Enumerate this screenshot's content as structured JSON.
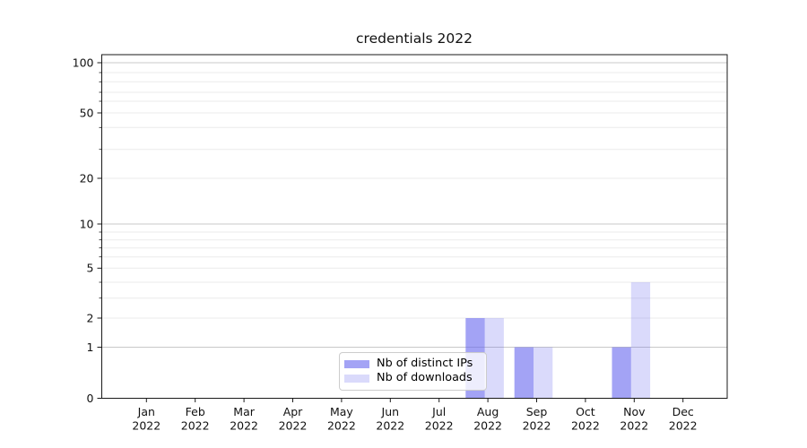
{
  "chart_data": {
    "type": "bar",
    "title": "credentials 2022",
    "x_axis": {
      "months": [
        "Jan",
        "Feb",
        "Mar",
        "Apr",
        "May",
        "Jun",
        "Jul",
        "Aug",
        "Sep",
        "Oct",
        "Nov",
        "Dec"
      ],
      "year": "2022"
    },
    "y_axis": {
      "scale": "log (0 baseline, labeled ticks 0,1,2,5,10,20,50,100)",
      "tick_labels": [
        0,
        1,
        2,
        5,
        10,
        20,
        50,
        100
      ],
      "major_gridlines": [
        1,
        10,
        100
      ],
      "minor_gridlines": [
        2,
        3,
        4,
        5,
        6,
        7,
        8,
        9,
        20,
        30,
        40,
        50,
        60,
        70,
        80,
        90
      ]
    },
    "series": [
      {
        "name": "Nb of distinct IPs",
        "values": [
          0,
          0,
          0,
          0,
          0,
          0,
          0,
          2,
          1,
          0,
          1,
          0
        ],
        "color": "#6666ee",
        "fill_opacity": 0.6
      },
      {
        "name": "Nb of downloads",
        "values": [
          0,
          0,
          0,
          0,
          0,
          0,
          0,
          2,
          1,
          0,
          4,
          0
        ],
        "color": "#6666ee",
        "fill_opacity": 0.24
      }
    ],
    "legend": {
      "position": "lower center",
      "labels": [
        "Nb of distinct IPs",
        "Nb of downloads"
      ]
    }
  },
  "colors": {
    "background": "#ffffff",
    "spine": "#1a1a1a",
    "grid_major": "#c8c8c8",
    "grid_minor": "#ebebeb",
    "tick_text": "#111111"
  }
}
